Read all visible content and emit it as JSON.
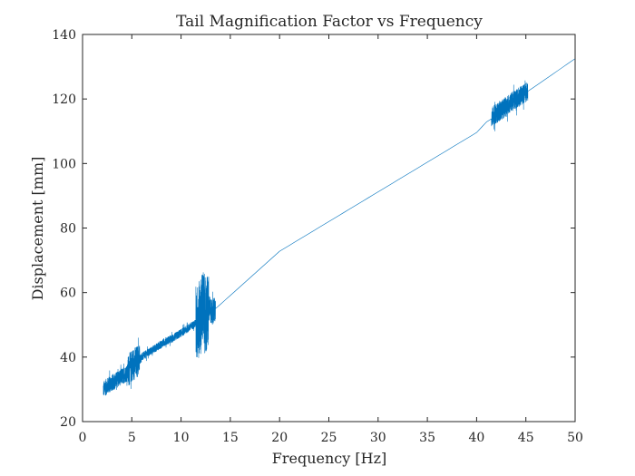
{
  "chart_data": {
    "type": "line",
    "title": "Tail Magnification Factor vs Frequency",
    "xlabel": "Frequency [Hz]",
    "ylabel": "Displacement [mm]",
    "xlim": [
      0,
      50
    ],
    "ylim": [
      20,
      140
    ],
    "xticks": [
      "0",
      "5",
      "10",
      "15",
      "20",
      "25",
      "30",
      "35",
      "40",
      "45",
      "50"
    ],
    "yticks": [
      "20",
      "40",
      "60",
      "80",
      "100",
      "120",
      "140"
    ],
    "grid": false,
    "line_color": "#0072BD",
    "series": [
      {
        "name": "",
        "x": [
          2.1,
          2.5,
          3.0,
          3.5,
          4.0,
          4.5,
          5.0,
          5.5,
          6.0,
          6.5,
          7.0,
          7.5,
          8.0,
          8.5,
          9.0,
          9.5,
          10.0,
          10.5,
          11.0,
          11.5,
          11.8,
          12.0,
          12.2,
          12.5,
          12.8,
          13.2,
          13.5,
          20,
          30,
          40,
          41.5,
          42.5,
          43.5,
          44.5,
          45.0,
          45.5,
          50.0
        ],
        "y": [
          30.0,
          31.0,
          32.0,
          33.0,
          34.0,
          35.0,
          37.5,
          38.5,
          40.0,
          41.0,
          42.0,
          43.0,
          44.0,
          45.0,
          45.5,
          46.5,
          47.5,
          48.5,
          49.5,
          50.5,
          51.0,
          53.0,
          56.0,
          52.0,
          55.0,
          54.0,
          55.0,
          72.8,
          91.2,
          109.6,
          114.5,
          116.5,
          119.0,
          121.0,
          122.0,
          123.0,
          132.5
        ]
      }
    ],
    "noisy_regions": [
      {
        "x_range": [
          2.1,
          4.6
        ],
        "amplitude": 2.5
      },
      {
        "x_range": [
          4.6,
          5.8
        ],
        "amplitude": 5.0
      },
      {
        "x_range": [
          5.8,
          11.5
        ],
        "amplitude": 1.2
      },
      {
        "x_range": [
          11.5,
          12.8
        ],
        "amplitude": 12.0
      },
      {
        "x_range": [
          12.8,
          13.5
        ],
        "amplitude": 4.0
      },
      {
        "x_range": [
          41.3,
          45.2
        ],
        "amplitude": 3.0
      }
    ]
  }
}
